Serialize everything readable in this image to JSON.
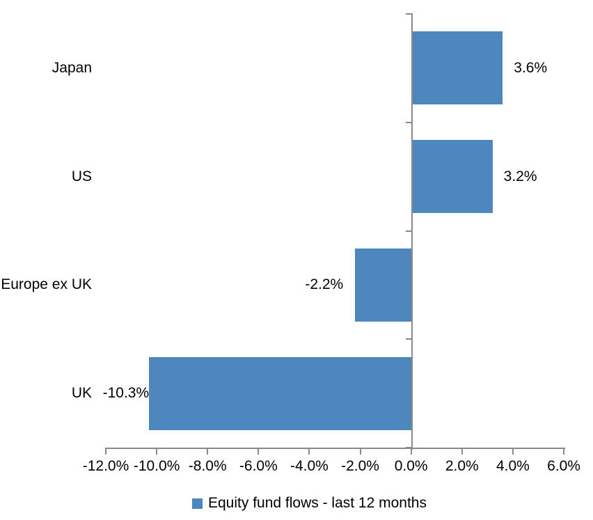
{
  "chart_data": {
    "type": "bar",
    "orientation": "horizontal",
    "title": "",
    "categories": [
      "Japan",
      "US",
      "Europe ex UK",
      "UK"
    ],
    "series": [
      {
        "name": "Equity fund flows - last 12 months",
        "values": [
          3.6,
          3.2,
          -2.2,
          -10.3
        ]
      }
    ],
    "data_labels": [
      "3.6%",
      "3.2%",
      "-2.2%",
      "-10.3%"
    ],
    "xlim": [
      -12,
      6
    ],
    "x_tick_values": [
      -12,
      -10,
      -8,
      -6,
      -4,
      -2,
      0,
      2,
      4,
      6
    ],
    "x_tick_labels": [
      "-12.0%",
      "-10.0%",
      "-8.0%",
      "-6.0%",
      "-4.0%",
      "-2.0%",
      "0.0%",
      "2.0%",
      "4.0%",
      "6.0%"
    ],
    "grid": false,
    "legend_position": "bottom",
    "bar_color": "#4E87BE",
    "axis_color": "#898989",
    "text_color": "#000000"
  },
  "legend": {
    "label": "Equity fund flows - last 12 months",
    "marker_color": "#4E87BE"
  }
}
